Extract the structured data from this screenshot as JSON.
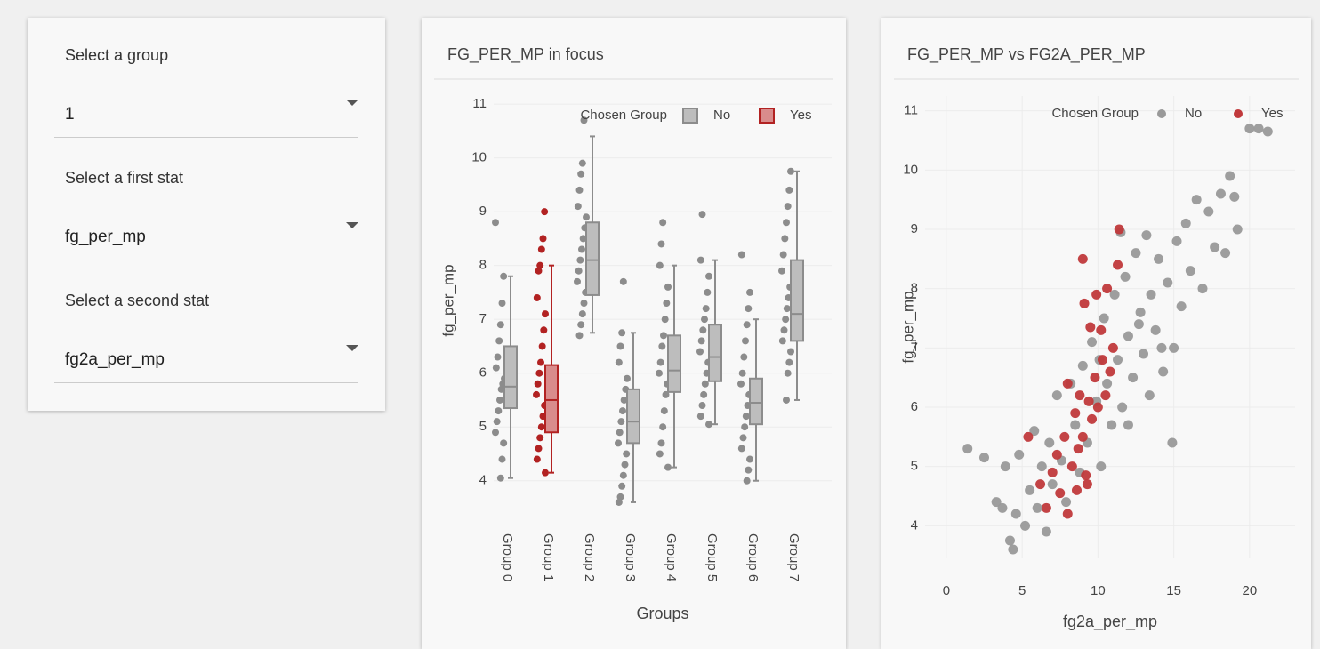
{
  "controls": [
    {
      "label": "Select a group",
      "value": "1"
    },
    {
      "label": "Select a first stat",
      "value": "fg_per_mp"
    },
    {
      "label": "Select a second stat",
      "value": "fg2a_per_mp"
    }
  ],
  "chart_data": [
    {
      "type": "box",
      "title": "FG_PER_MP in focus",
      "x_label": "Groups",
      "y_label": "fg_per_mp",
      "legend_title": "Chosen Group",
      "legend": "top-right",
      "grid": true,
      "categories": [
        "Group 0",
        "Group 1",
        "Group 2",
        "Group 3",
        "Group 4",
        "Group 5",
        "Group 6",
        "Group 7"
      ],
      "ylim": [
        3.5,
        11.2
      ],
      "yticks": [
        4,
        5,
        6,
        7,
        8,
        9,
        10,
        11
      ],
      "series": [
        {
          "name": "No",
          "color": "#8c8c8c",
          "box_fill": "#bdbdbd",
          "boxes": [
            {
              "min": 4.05,
              "q1": 5.35,
              "median": 5.75,
              "q3": 6.5,
              "max": 7.8
            },
            null,
            {
              "min": 6.75,
              "q1": 7.45,
              "median": 8.1,
              "q3": 8.8,
              "max": 10.4
            },
            {
              "min": 3.6,
              "q1": 4.7,
              "median": 5.1,
              "q3": 5.7,
              "max": 6.75
            },
            {
              "min": 4.25,
              "q1": 5.65,
              "median": 6.05,
              "q3": 6.7,
              "max": 8.0
            },
            {
              "min": 5.05,
              "q1": 5.85,
              "median": 6.3,
              "q3": 6.9,
              "max": 8.1
            },
            {
              "min": 4.0,
              "q1": 5.05,
              "median": 5.45,
              "q3": 5.9,
              "max": 7.0
            },
            {
              "min": 5.5,
              "q1": 6.6,
              "median": 7.1,
              "q3": 8.1,
              "max": 9.75
            }
          ],
          "points": [
            [
              8.8,
              7.8,
              7.3,
              6.9,
              6.6,
              6.3,
              6.1,
              5.9,
              5.8,
              5.7,
              5.5,
              5.3,
              5.1,
              4.9,
              4.7,
              4.4,
              4.05
            ],
            null,
            [
              10.7,
              9.9,
              9.7,
              9.4,
              9.1,
              8.9,
              8.7,
              8.5,
              8.3,
              8.1,
              7.9,
              7.7,
              7.5,
              7.3,
              7.1,
              6.9,
              6.7
            ],
            [
              7.7,
              6.75,
              6.5,
              6.2,
              5.9,
              5.7,
              5.5,
              5.3,
              5.1,
              4.9,
              4.7,
              4.5,
              4.3,
              4.1,
              3.9,
              3.7,
              3.6
            ],
            [
              8.8,
              8.4,
              8.0,
              7.6,
              7.3,
              7.0,
              6.7,
              6.5,
              6.2,
              6.0,
              5.8,
              5.6,
              5.3,
              5.0,
              4.7,
              4.5,
              4.25
            ],
            [
              8.95,
              8.1,
              7.8,
              7.5,
              7.2,
              7.0,
              6.8,
              6.6,
              6.4,
              6.2,
              6.0,
              5.8,
              5.6,
              5.4,
              5.2,
              5.05
            ],
            [
              8.2,
              7.5,
              7.2,
              6.9,
              6.6,
              6.3,
              6.0,
              5.8,
              5.6,
              5.4,
              5.2,
              5.0,
              4.8,
              4.6,
              4.4,
              4.2,
              4.0
            ],
            [
              9.75,
              9.4,
              9.1,
              8.8,
              8.5,
              8.2,
              7.9,
              7.6,
              7.4,
              7.2,
              7.0,
              6.8,
              6.6,
              6.4,
              6.2,
              6.0,
              5.5
            ]
          ]
        },
        {
          "name": "Yes",
          "color": "#b22222",
          "box_fill": "#d98c8c",
          "boxes": [
            null,
            {
              "min": 4.15,
              "q1": 4.9,
              "median": 5.5,
              "q3": 6.15,
              "max": 8.0
            },
            null,
            null,
            null,
            null,
            null,
            null
          ],
          "points": [
            null,
            [
              9.0,
              8.5,
              8.3,
              8.0,
              7.9,
              7.4,
              7.1,
              6.8,
              6.5,
              6.2,
              6.0,
              5.8,
              5.6,
              5.4,
              5.2,
              5.0,
              4.8,
              4.6,
              4.4,
              4.15
            ],
            null,
            null,
            null,
            null,
            null,
            null
          ]
        }
      ]
    },
    {
      "type": "scatter",
      "title": "FG_PER_MP vs FG2A_PER_MP",
      "x_label": "fg2a_per_mp",
      "y_label": "fg_per_mp",
      "legend_title": "Chosen Group",
      "legend": "top-right",
      "grid": true,
      "xlim": [
        -1.4,
        23
      ],
      "xticks": [
        0,
        5,
        10,
        15,
        20
      ],
      "ylim": [
        3.45,
        11.25
      ],
      "yticks": [
        4,
        5,
        6,
        7,
        8,
        9,
        10,
        11
      ],
      "series": [
        {
          "name": "No",
          "color": "#999999",
          "x": [
            1.4,
            2.5,
            3.3,
            3.7,
            3.9,
            4.2,
            4.4,
            4.6,
            4.8,
            5.2,
            5.5,
            5.8,
            6.0,
            6.3,
            6.6,
            6.8,
            7.0,
            7.3,
            7.6,
            7.9,
            8.2,
            8.5,
            8.8,
            9.0,
            9.3,
            9.6,
            9.9,
            10.2,
            10.4,
            10.6,
            10.9,
            11.1,
            11.3,
            11.6,
            11.8,
            12.0,
            12.3,
            12.5,
            12.8,
            13.0,
            13.2,
            13.5,
            13.8,
            14.0,
            14.3,
            14.6,
            14.9,
            15.2,
            15.5,
            15.8,
            16.1,
            16.5,
            16.9,
            17.3,
            17.7,
            18.1,
            18.4,
            18.7,
            19.0,
            19.2,
            20.0,
            20.6,
            21.2,
            12.0,
            13.4,
            11.5,
            14.2,
            10.1,
            12.7,
            15.0
          ],
          "values": [
            5.3,
            5.15,
            4.4,
            4.3,
            5.0,
            3.75,
            3.6,
            4.2,
            5.2,
            4.0,
            4.6,
            5.6,
            4.3,
            5.0,
            3.9,
            5.4,
            4.7,
            6.2,
            5.1,
            4.4,
            6.4,
            5.7,
            4.9,
            6.7,
            5.4,
            7.1,
            6.1,
            5.0,
            7.5,
            6.4,
            5.7,
            7.9,
            6.8,
            6.0,
            8.2,
            7.2,
            6.5,
            8.6,
            7.6,
            6.9,
            8.9,
            7.9,
            7.3,
            8.5,
            6.6,
            8.1,
            5.4,
            8.8,
            7.7,
            9.1,
            8.3,
            9.5,
            8.0,
            9.3,
            8.7,
            9.6,
            8.6,
            9.9,
            9.55,
            9.0,
            10.7,
            10.7,
            10.65,
            5.7,
            6.2,
            8.95,
            7.0,
            6.8,
            7.4,
            7.0
          ]
        },
        {
          "name": "Yes",
          "color": "#c0393b",
          "x": [
            5.4,
            6.2,
            6.6,
            7.0,
            7.3,
            7.5,
            7.8,
            8.0,
            8.0,
            8.3,
            8.5,
            8.6,
            8.8,
            9.0,
            9.0,
            9.1,
            9.2,
            9.4,
            9.5,
            9.6,
            9.8,
            9.9,
            10.0,
            10.2,
            10.3,
            10.5,
            10.6,
            11.0,
            11.3,
            11.4,
            10.8,
            9.3,
            8.7
          ],
          "values": [
            5.5,
            4.7,
            4.3,
            4.9,
            5.2,
            4.55,
            5.5,
            4.2,
            6.4,
            5.0,
            5.9,
            4.6,
            6.2,
            5.5,
            8.5,
            7.75,
            4.85,
            6.1,
            7.35,
            5.8,
            6.5,
            7.9,
            6.0,
            7.3,
            6.8,
            6.2,
            8.0,
            7.0,
            8.4,
            9.0,
            6.6,
            4.7,
            5.3
          ]
        }
      ]
    }
  ]
}
